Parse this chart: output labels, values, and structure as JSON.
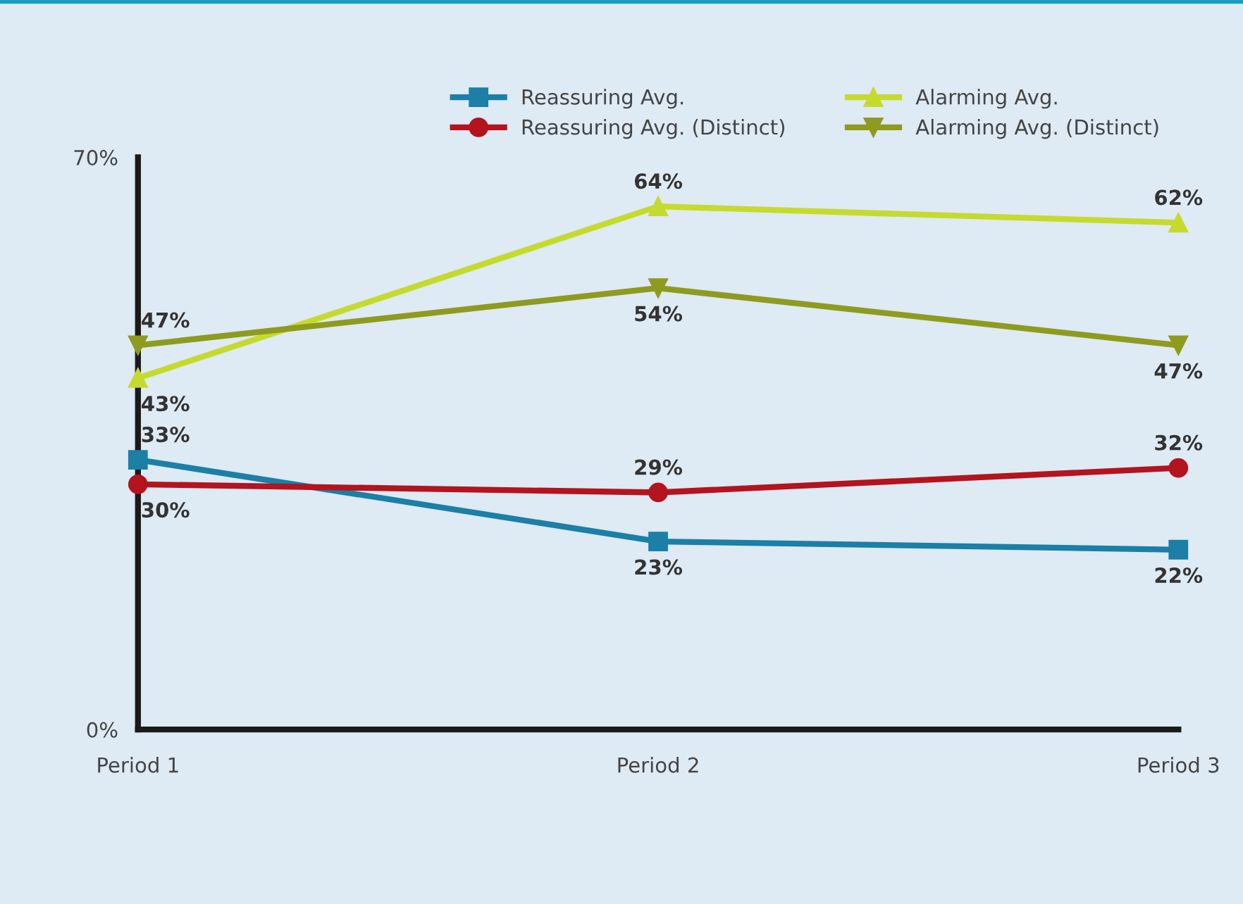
{
  "chart_data": {
    "type": "line",
    "categories": [
      "Period 1",
      "Period 2",
      "Period 3"
    ],
    "series": [
      {
        "name": "Reassuring Avg.",
        "color": "#1b7fa6",
        "marker": "square",
        "values": [
          33,
          23,
          22
        ],
        "value_labels": [
          "33%",
          "23%",
          "22%"
        ]
      },
      {
        "name": "Reassuring Avg. (Distinct)",
        "color": "#b3141e",
        "marker": "circle",
        "values": [
          30,
          29,
          32
        ],
        "value_labels": [
          "30%",
          "29%",
          "32%"
        ]
      },
      {
        "name": "Alarming Avg.",
        "color": "#c6da2e",
        "marker": "triangle",
        "values": [
          43,
          64,
          62
        ],
        "value_labels": [
          "43%",
          "64%",
          "62%"
        ]
      },
      {
        "name": "Alarming Avg. (Distinct)",
        "color": "#8e9b1f",
        "marker": "triangle_down",
        "values": [
          47,
          54,
          47
        ],
        "value_labels": [
          "47%",
          "54%",
          "47%"
        ]
      }
    ],
    "ylim": [
      0,
      70
    ],
    "yticks": [
      {
        "value": 0,
        "label": "0%"
      },
      {
        "value": 70,
        "label": "70%"
      }
    ],
    "grid": false,
    "legend": "top right",
    "line_style": "solid"
  }
}
